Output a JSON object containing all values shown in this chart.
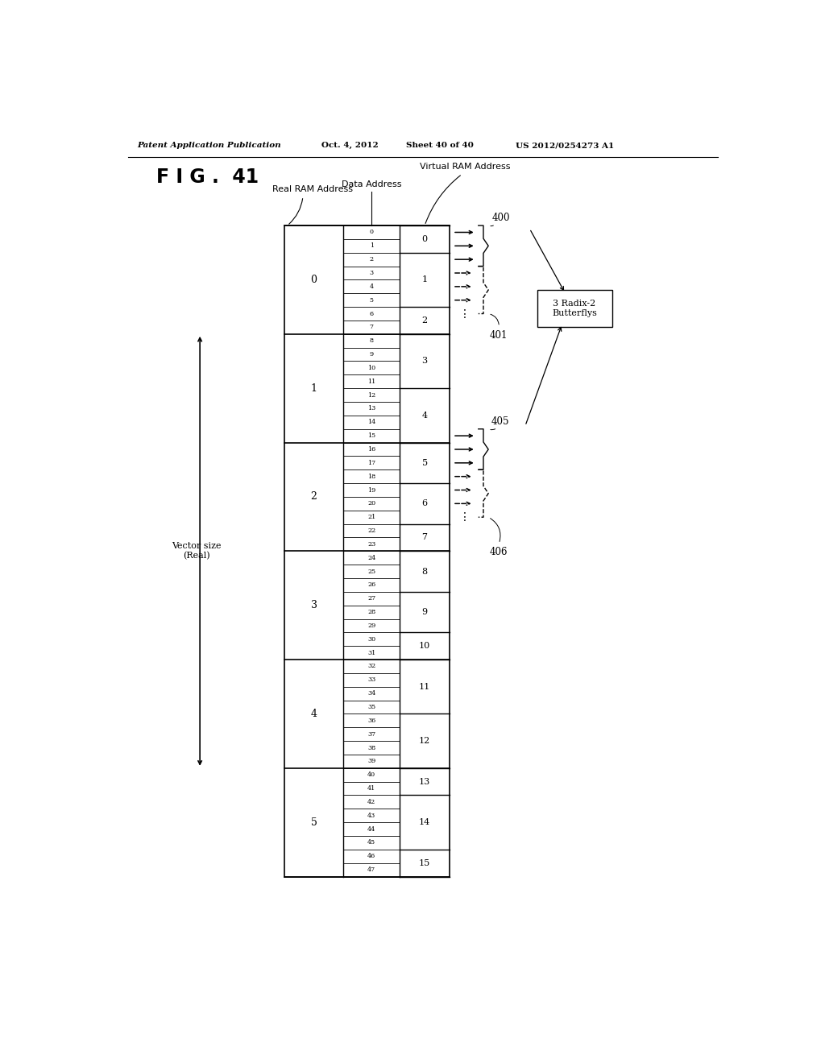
{
  "header_left": "Patent Application Publication",
  "header_date": "Oct. 4, 2012",
  "header_sheet": "Sheet 40 of 40",
  "header_patent": "US 2012/0254273 A1",
  "fig_label": "F I G .  41",
  "real_ram_groups": [
    {
      "label": "0",
      "r0": 0,
      "r1": 7
    },
    {
      "label": "1",
      "r0": 8,
      "r1": 15
    },
    {
      "label": "2",
      "r0": 16,
      "r1": 23
    },
    {
      "label": "3",
      "r0": 24,
      "r1": 31
    },
    {
      "label": "4",
      "r0": 32,
      "r1": 39
    },
    {
      "label": "5",
      "r0": 40,
      "r1": 47
    }
  ],
  "virt_groups": [
    {
      "label": "0",
      "r0": 0,
      "r1": 1
    },
    {
      "label": "1",
      "r0": 2,
      "r1": 5
    },
    {
      "label": "2",
      "r0": 6,
      "r1": 7
    },
    {
      "label": "3",
      "r0": 8,
      "r1": 11
    },
    {
      "label": "4",
      "r0": 12,
      "r1": 15
    },
    {
      "label": "5",
      "r0": 16,
      "r1": 18
    },
    {
      "label": "6",
      "r0": 19,
      "r1": 21
    },
    {
      "label": "7",
      "r0": 22,
      "r1": 23
    },
    {
      "label": "8",
      "r0": 24,
      "r1": 26
    },
    {
      "label": "9",
      "r0": 27,
      "r1": 29
    },
    {
      "label": "10",
      "r0": 30,
      "r1": 31
    },
    {
      "label": "11",
      "r0": 32,
      "r1": 35
    },
    {
      "label": "12",
      "r0": 36,
      "r1": 39
    },
    {
      "label": "13",
      "r0": 40,
      "r1": 41
    },
    {
      "label": "14",
      "r0": 42,
      "r1": 45
    },
    {
      "label": "15",
      "r0": 46,
      "r1": 47
    }
  ],
  "col_label_real": "Real RAM Address",
  "col_label_data": "Data Address",
  "col_label_virt": "Virtual RAM Address",
  "ann_400": "400",
  "ann_401": "401",
  "ann_405": "405",
  "ann_406": "406",
  "box_text": "3 Radix-2\nButterflys",
  "vec_label": "Vector size\n(Real)"
}
